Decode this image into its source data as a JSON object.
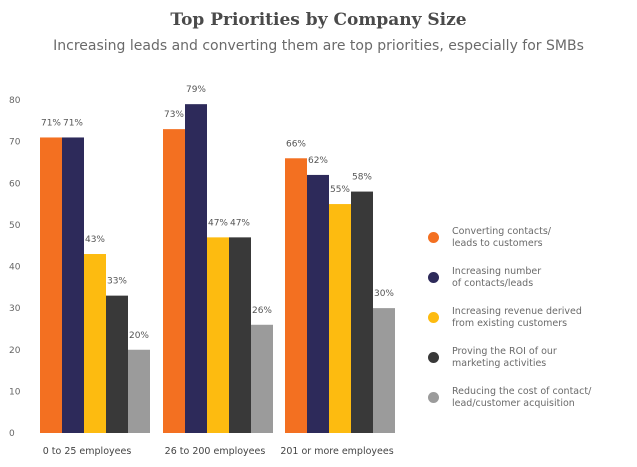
{
  "chart_data": {
    "type": "bar",
    "title": "Top Priorities by Company Size",
    "subtitle": "Increasing leads and converting them are top priorities, especially for SMBs",
    "categories": [
      "0 to 25 employees",
      "26 to 200 employees",
      "201 or more employees"
    ],
    "ylim": [
      0,
      80
    ],
    "yticks": [
      0,
      10,
      20,
      30,
      40,
      50,
      60,
      70,
      80
    ],
    "xlabel": "",
    "ylabel": "",
    "grid": false,
    "legend_position": "right",
    "series": [
      {
        "name": "Converting contacts/ leads to customers",
        "legend_lines": [
          "Converting contacts/",
          "leads to customers"
        ],
        "color": "#f37021",
        "values": [
          71,
          73,
          66
        ],
        "labels": [
          "71%",
          "73%",
          "66%"
        ]
      },
      {
        "name": "Increasing number of contacts/leads",
        "legend_lines": [
          "Increasing number",
          "of contacts/leads"
        ],
        "color": "#2d2a5a",
        "values": [
          71,
          79,
          62
        ],
        "labels": [
          "71%",
          "79%",
          "62%"
        ]
      },
      {
        "name": "Increasing revenue derived from existing customers",
        "legend_lines": [
          "Increasing revenue derived",
          "from existing customers"
        ],
        "color": "#fdbb10",
        "values": [
          43,
          47,
          55
        ],
        "labels": [
          "43%",
          "47%",
          "55%"
        ]
      },
      {
        "name": "Proving the ROI of our marketing activities",
        "legend_lines": [
          "Proving the ROI of our",
          "marketing activities"
        ],
        "color": "#393939",
        "values": [
          33,
          47,
          58
        ],
        "labels": [
          "33%",
          "47%",
          "58%"
        ]
      },
      {
        "name": "Reducing the cost of contact/ lead/customer acquisition",
        "legend_lines": [
          "Reducing the cost of contact/",
          "lead/customer acquisition"
        ],
        "color": "#9b9b9b",
        "values": [
          20,
          26,
          30
        ],
        "labels": [
          "20%",
          "26%",
          "30%"
        ]
      }
    ]
  }
}
